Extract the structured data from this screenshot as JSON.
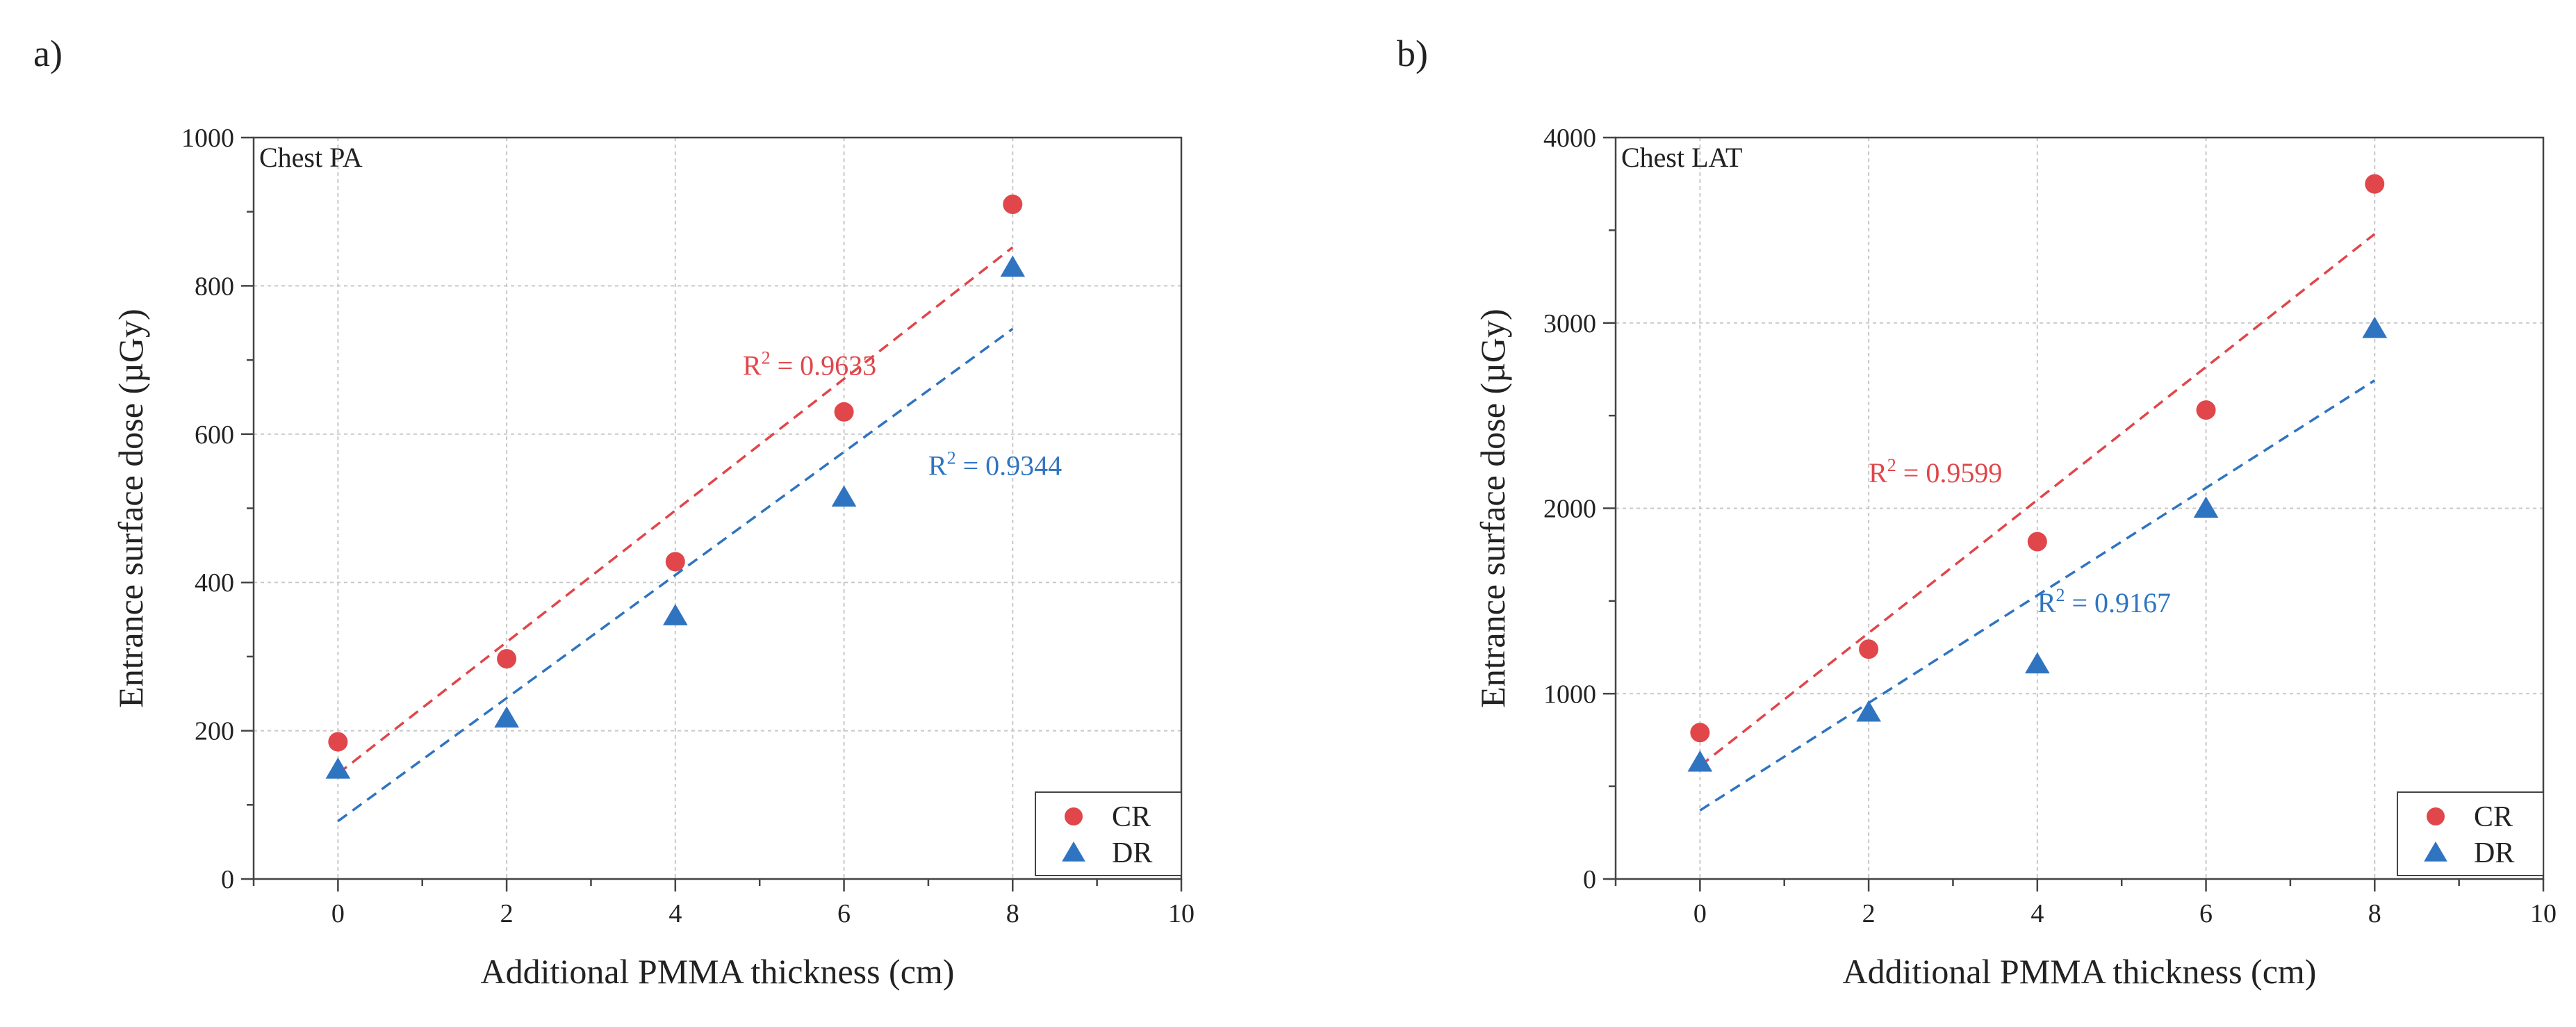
{
  "chart_data": [
    {
      "panel": "a)",
      "type": "scatter",
      "title": "Chest PA",
      "xlabel": "Additional PMMA thickness (cm)",
      "ylabel": "Entrance surface dose (µGy)",
      "xlim": [
        -1,
        10
      ],
      "ylim": [
        0,
        1000
      ],
      "xticks": [
        0,
        2,
        4,
        6,
        8,
        10
      ],
      "yticks": [
        0,
        200,
        400,
        600,
        800,
        1000
      ],
      "x_tick_labels": [
        "0",
        "2",
        "4",
        "6",
        "8",
        "10"
      ],
      "y_tick_labels": [
        "0",
        "200",
        "400",
        "600",
        "800",
        "1000"
      ],
      "series": [
        {
          "name": "CR",
          "marker": "circle",
          "color": "#e0464a",
          "x": [
            0,
            2,
            4,
            6,
            8
          ],
          "y": [
            185,
            297,
            428,
            630,
            910
          ],
          "fit": {
            "x": [
              0,
              8
            ],
            "y": [
              142,
              852
            ]
          },
          "r2_label": {
            "prefix": "R",
            "sup": "2",
            "text": " = 0.9633",
            "at": [
              4.8,
              680
            ]
          }
        },
        {
          "name": "DR",
          "marker": "triangle",
          "color": "#2f74c0",
          "x": [
            0,
            2,
            4,
            6,
            8
          ],
          "y": [
            148,
            217,
            355,
            515,
            825
          ],
          "fit": {
            "x": [
              0,
              8
            ],
            "y": [
              78,
              742
            ]
          },
          "r2_label": {
            "prefix": "R",
            "sup": "2",
            "text": " = 0.9344",
            "at": [
              7.0,
              545
            ]
          }
        }
      ],
      "legend": {
        "position": "bottom-right",
        "entries": [
          "CR",
          "DR"
        ]
      }
    },
    {
      "panel": "b)",
      "type": "scatter",
      "title": "Chest LAT",
      "xlabel": "Additional PMMA thickness (cm)",
      "ylabel": "Entrance surface dose (µGy)",
      "xlim": [
        -1,
        10
      ],
      "ylim": [
        0,
        4000
      ],
      "xticks": [
        0,
        2,
        4,
        6,
        8,
        10
      ],
      "yticks": [
        0,
        1000,
        2000,
        3000,
        4000
      ],
      "x_tick_labels": [
        "0",
        "2",
        "4",
        "6",
        "8",
        "10"
      ],
      "y_tick_labels": [
        "0",
        "1000",
        "2000",
        "3000",
        "4000"
      ],
      "series": [
        {
          "name": "CR",
          "marker": "circle",
          "color": "#e0464a",
          "x": [
            0,
            2,
            4,
            6,
            8
          ],
          "y": [
            790,
            1240,
            1820,
            2530,
            3750
          ],
          "fit": {
            "x": [
              0,
              8
            ],
            "y": [
              610,
              3480
            ]
          },
          "r2_label": {
            "prefix": "R",
            "sup": "2",
            "text": " = 0.9599",
            "at": [
              2.0,
              2140
            ]
          }
        },
        {
          "name": "DR",
          "marker": "triangle",
          "color": "#2f74c0",
          "x": [
            0,
            2,
            4,
            6,
            8
          ],
          "y": [
            630,
            900,
            1160,
            2000,
            2970
          ],
          "fit": {
            "x": [
              0,
              8
            ],
            "y": [
              370,
              2690
            ]
          },
          "r2_label": {
            "prefix": "R",
            "sup": "2",
            "text": " = 0.9167",
            "at": [
              4.0,
              1440
            ]
          }
        }
      ],
      "legend": {
        "position": "bottom-right",
        "entries": [
          "CR",
          "DR"
        ]
      }
    }
  ]
}
